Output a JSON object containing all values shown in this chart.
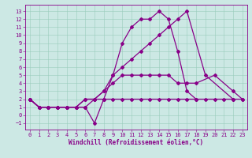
{
  "background_color": "#cce8e4",
  "grid_color": "#99ccbb",
  "line_color": "#880088",
  "markersize": 2.0,
  "linewidth": 0.9,
  "xlabel": "Windchill (Refroidissement éolien,°C)",
  "xlabel_fontsize": 5.5,
  "tick_fontsize": 5.0,
  "xlim": [
    -0.5,
    23.5
  ],
  "ylim": [
    -1.8,
    13.8
  ],
  "xticks": [
    0,
    1,
    2,
    3,
    4,
    5,
    6,
    7,
    8,
    9,
    10,
    11,
    12,
    13,
    14,
    15,
    16,
    17,
    18,
    19,
    20,
    21,
    22,
    23
  ],
  "yticks": [
    -1,
    0,
    1,
    2,
    3,
    4,
    5,
    6,
    7,
    8,
    9,
    10,
    11,
    12,
    13
  ],
  "series_x": [
    [
      0,
      1,
      2,
      3,
      4,
      5,
      6,
      7,
      8,
      9,
      10,
      11,
      12,
      13,
      14,
      15,
      16,
      17,
      18
    ],
    [
      0,
      1,
      2,
      3,
      4,
      5,
      6,
      7,
      8,
      9,
      10,
      11,
      12,
      13,
      14,
      15,
      16,
      17,
      19,
      22
    ],
    [
      0,
      1,
      2,
      3,
      4,
      5,
      6,
      7,
      8,
      9,
      10,
      11,
      12,
      13,
      14,
      15,
      16,
      17,
      18,
      19,
      20,
      21,
      22,
      23
    ],
    [
      0,
      1,
      2,
      3,
      4,
      5,
      6,
      7,
      8,
      9,
      10,
      11,
      12,
      13,
      14,
      15,
      16,
      17,
      18,
      20,
      22,
      23
    ]
  ],
  "series_y": [
    [
      2,
      1,
      1,
      1,
      1,
      1,
      1,
      -1,
      2,
      5,
      9,
      11,
      12,
      12,
      13,
      12,
      8,
      3,
      2
    ],
    [
      2,
      1,
      1,
      1,
      1,
      1,
      2,
      2,
      3,
      5,
      6,
      7,
      8,
      9,
      10,
      11,
      12,
      13,
      5,
      2
    ],
    [
      2,
      1,
      1,
      1,
      1,
      1,
      2,
      2,
      2,
      2,
      2,
      2,
      2,
      2,
      2,
      2,
      2,
      2,
      2,
      2,
      2,
      2,
      2,
      2
    ],
    [
      2,
      1,
      1,
      1,
      1,
      1,
      1,
      2,
      3,
      4,
      5,
      5,
      5,
      5,
      5,
      5,
      4,
      4,
      4,
      5,
      3,
      2
    ]
  ]
}
